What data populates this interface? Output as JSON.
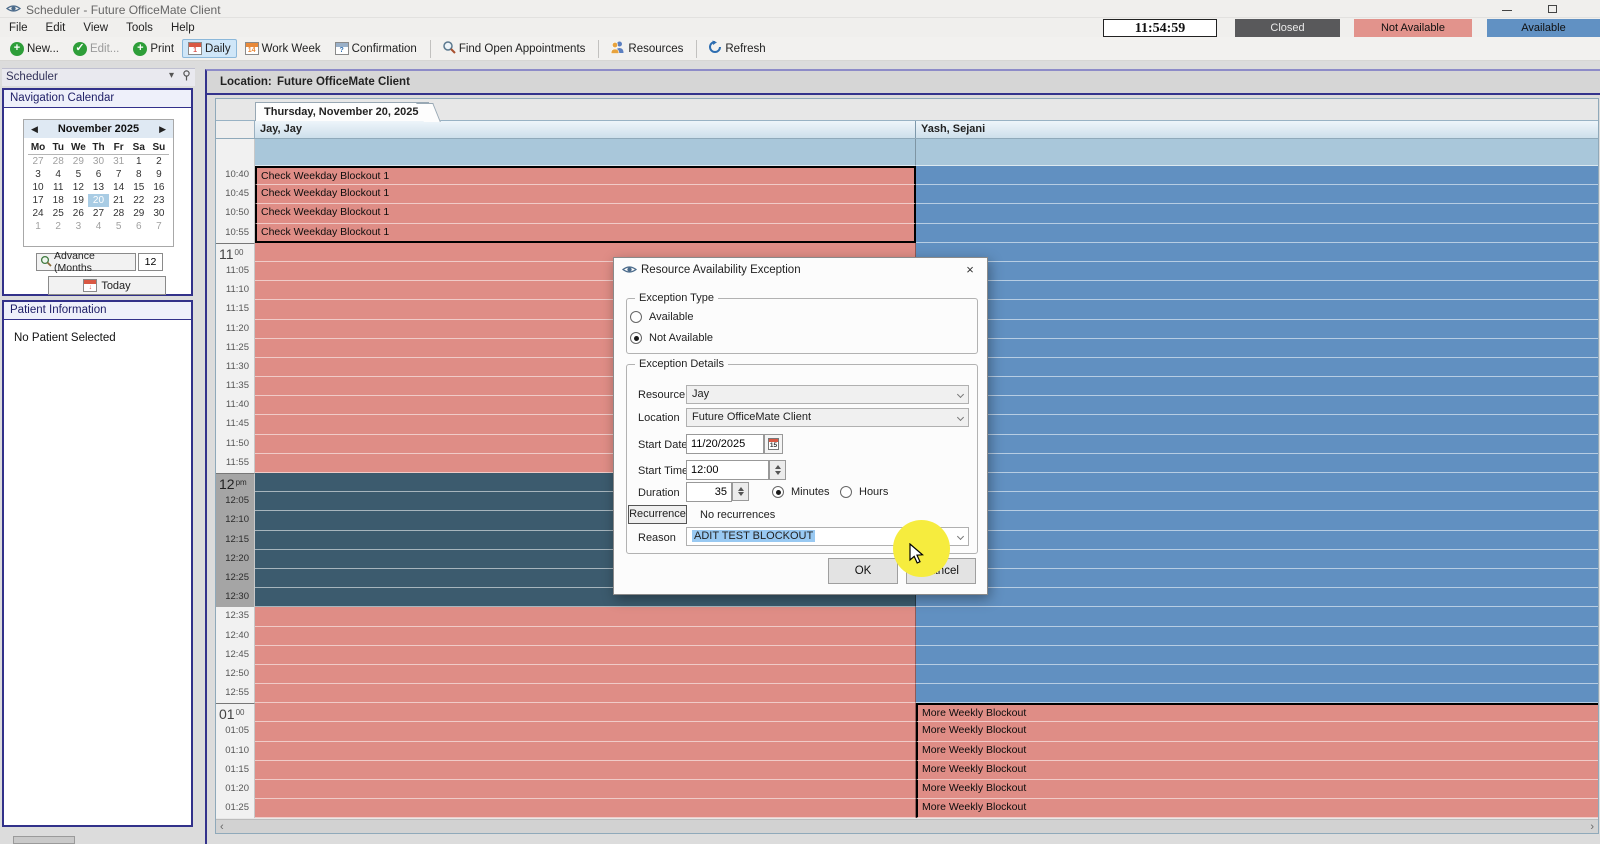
{
  "window": {
    "title": "Scheduler - Future OfficeMate Client"
  },
  "menubar": {
    "items": [
      "File",
      "Edit",
      "View",
      "Tools",
      "Help"
    ]
  },
  "status_widgets": {
    "clock": "11:54:59",
    "legend": [
      {
        "label": "Closed",
        "bg": "#59595b"
      },
      {
        "label": "Not Available",
        "bg": "#e2938c"
      },
      {
        "label": "Available",
        "bg": "#6191c3"
      }
    ]
  },
  "toolbar": {
    "buttons": [
      {
        "label": "New...",
        "icon": "new-plus-icon"
      },
      {
        "label": "Edit...",
        "icon": "edit-check-icon",
        "disabled": true
      },
      {
        "label": "Print",
        "icon": "print-plus-icon"
      },
      {
        "label": "Daily",
        "icon": "calendar-daily-icon",
        "active": true
      },
      {
        "label": "Work Week",
        "icon": "calendar-week-icon"
      },
      {
        "label": "Confirmation",
        "icon": "calendar-question-icon"
      },
      {
        "label": "Find Open Appointments",
        "icon": "magnifier-icon"
      },
      {
        "label": "Resources",
        "icon": "people-icon"
      },
      {
        "label": "Refresh",
        "icon": "refresh-icon"
      }
    ]
  },
  "sidebar": {
    "panel_title": "Scheduler",
    "collapse_glyph": "▾",
    "calendar": {
      "title": "Navigation Calendar",
      "month": "November 2025",
      "prev": "◀",
      "next": "▶",
      "day_headers": [
        "Mo",
        "Tu",
        "We",
        "Th",
        "Fr",
        "Sa",
        "Su"
      ],
      "weeks": [
        [
          "27",
          "28",
          "29",
          "30",
          "31",
          "1",
          "2"
        ],
        [
          "3",
          "4",
          "5",
          "6",
          "7",
          "8",
          "9"
        ],
        [
          "10",
          "11",
          "12",
          "13",
          "14",
          "15",
          "16"
        ],
        [
          "17",
          "18",
          "19",
          "20",
          "21",
          "22",
          "23"
        ],
        [
          "24",
          "25",
          "26",
          "27",
          "28",
          "29",
          "30"
        ],
        [
          "1",
          "2",
          "3",
          "4",
          "5",
          "6",
          "7"
        ]
      ],
      "muted_weeks": {
        "0": [
          0,
          1,
          2,
          3,
          4
        ],
        "5": [
          0,
          1,
          2,
          3,
          4,
          5,
          6
        ]
      },
      "selected_cell": [
        3,
        3
      ],
      "advance_label": "Advance (Months",
      "advance_value": "12",
      "today_label": "Today"
    },
    "patient": {
      "title": "Patient Information",
      "message": "No Patient Selected"
    }
  },
  "main": {
    "location_label": "Location:",
    "location_value": "Future OfficeMate Client",
    "tab_label": "Thursday, November 20, 2025",
    "columns": [
      {
        "name": "Jay, Jay"
      },
      {
        "name": "Yash, Sejani"
      }
    ],
    "scroll_left_arrow": "‹",
    "scroll_right_arrow": "›",
    "schedule": {
      "row_height": 19.2,
      "colors": {
        "salmon": "#df8d86",
        "blue": "#6190c1",
        "dark_selected": "#3c5b6e",
        "top_band": "#a9c7da"
      },
      "left_selected_rows": [
        0,
        3
      ],
      "dark_rows": [
        16,
        22
      ],
      "right_block_rows": [
        28,
        33
      ],
      "rows": [
        {
          "t": "10:40",
          "lt": "Check Weekday Blockout 1"
        },
        {
          "t": "10:45",
          "lt": "Check Weekday Blockout 1"
        },
        {
          "t": "10:50",
          "lt": "Check Weekday Blockout 1"
        },
        {
          "t": "10:55",
          "lt": "Check Weekday Blockout 1"
        },
        {
          "t": "11:00",
          "h": "11",
          "hs": "00"
        },
        {
          "t": "11:05"
        },
        {
          "t": "11:10"
        },
        {
          "t": "11:15"
        },
        {
          "t": "11:20"
        },
        {
          "t": "11:25"
        },
        {
          "t": "11:30"
        },
        {
          "t": "11:35"
        },
        {
          "t": "11:40"
        },
        {
          "t": "11:45"
        },
        {
          "t": "11:50"
        },
        {
          "t": "11:55"
        },
        {
          "t": "12:00",
          "h": "12",
          "hs": "pm"
        },
        {
          "t": "12:05"
        },
        {
          "t": "12:10"
        },
        {
          "t": "12:15"
        },
        {
          "t": "12:20"
        },
        {
          "t": "12:25"
        },
        {
          "t": "12:30"
        },
        {
          "t": "12:35"
        },
        {
          "t": "12:40"
        },
        {
          "t": "12:45"
        },
        {
          "t": "12:50"
        },
        {
          "t": "12:55"
        },
        {
          "t": "01:00",
          "h": "01",
          "hs": "00",
          "rt": "More Weekly Blockout"
        },
        {
          "t": "01:05",
          "rt": "More Weekly Blockout"
        },
        {
          "t": "01:10",
          "rt": "More Weekly Blockout"
        },
        {
          "t": "01:15",
          "rt": "More Weekly Blockout"
        },
        {
          "t": "01:20",
          "rt": "More Weekly Blockout"
        },
        {
          "t": "01:25",
          "rt": "More Weekly Blockout"
        }
      ]
    }
  },
  "dialog": {
    "title": "Resource Availability Exception",
    "close_glyph": "×",
    "exception_type": {
      "legend": "Exception Type",
      "options": [
        {
          "label": "Available",
          "selected": false
        },
        {
          "label": "Not Available",
          "selected": true
        }
      ]
    },
    "details": {
      "legend": "Exception Details",
      "resource_label": "Resource",
      "resource_value": "Jay",
      "location_label": "Location",
      "location_value": "Future OfficeMate Client",
      "start_date_label": "Start Date",
      "start_date_value": "11/20/2025",
      "date_icon_day": "15",
      "start_time_label": "Start Time",
      "start_time_value": "12:00",
      "duration_label": "Duration",
      "duration_value": "35",
      "unit_options": [
        {
          "label": "Minutes",
          "selected": true
        },
        {
          "label": "Hours",
          "selected": false
        }
      ],
      "recurrence_button": "Recurrence",
      "recurrence_text": "No recurrences",
      "reason_label": "Reason",
      "reason_value": "ADIT TEST BLOCKOUT"
    },
    "ok_label": "OK",
    "cancel_label": "Cancel"
  }
}
